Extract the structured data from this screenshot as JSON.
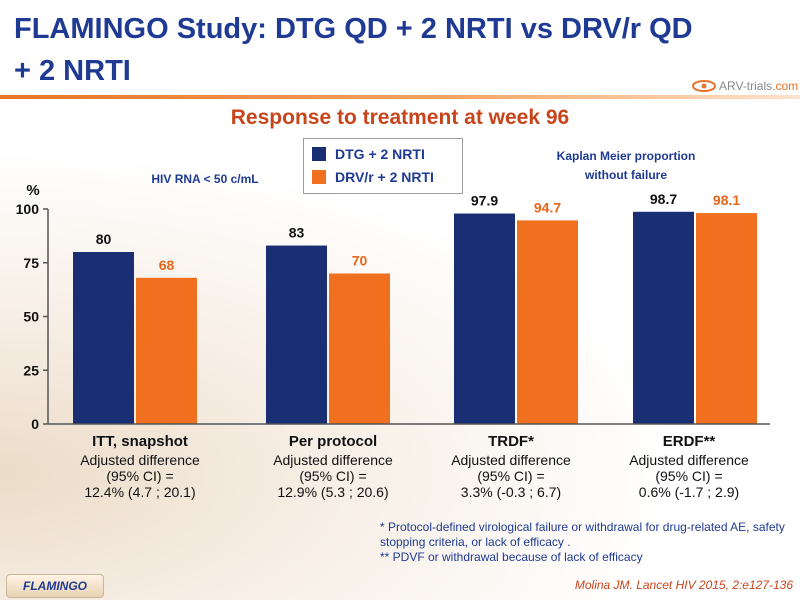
{
  "slide_title": "FLAMINGO Study: DTG QD + 2 NRTI vs DRV/r QD + 2 NRTI",
  "logo": {
    "text_main": "ARV-trials",
    "text_accent": ".com"
  },
  "chart_data": {
    "type": "bar",
    "title": "Response to treatment at week 96",
    "ylabel": "%",
    "ylim": [
      0,
      100
    ],
    "yticks": [
      0,
      25,
      50,
      75,
      100
    ],
    "grid": false,
    "legend_position": "top-center",
    "categories": [
      "ITT, snapshot",
      "Per protocol",
      "TRDF*",
      "ERDF**"
    ],
    "series": [
      {
        "name": "DTG + 2 NRTI",
        "color": "#1a2f73",
        "values": [
          80,
          83,
          97.9,
          98.7
        ],
        "labels": [
          "80",
          "83",
          "97.9",
          "98.7"
        ]
      },
      {
        "name": "DRV/r + 2 NRTI",
        "color": "#f07020",
        "values": [
          68,
          70,
          94.7,
          98.1
        ],
        "labels": [
          "68",
          "70",
          "94.7",
          "98.1"
        ]
      }
    ],
    "category_details": [
      [
        "Adjusted difference",
        "(95% CI) =",
        "12.4% (4.7 ; 20.1)"
      ],
      [
        "Adjusted difference",
        "(95% CI) =",
        "12.9% (5.3 ; 20.6)"
      ],
      [
        "Adjusted difference",
        "(95% CI) =",
        "3.3% (-0.3 ; 6.7)"
      ],
      [
        "Adjusted difference",
        "(95% CI) =",
        "0.6% (-1.7 ; 2.9)"
      ]
    ],
    "annotations": {
      "left_label": "HIV RNA < 50 c/mL",
      "right_label_line1": "Kaplan Meier proportion",
      "right_label_line2": "without failure"
    }
  },
  "footnotes": {
    "line1": "* Protocol-defined virological failure or withdrawal for drug-related AE, safety stopping criteria, or lack of efficacy .",
    "line2": "** PDVF or withdrawal because of lack of efficacy"
  },
  "tag": "FLAMINGO",
  "reference": "Molina JM. Lancet HIV 2015, 2:e127-136"
}
